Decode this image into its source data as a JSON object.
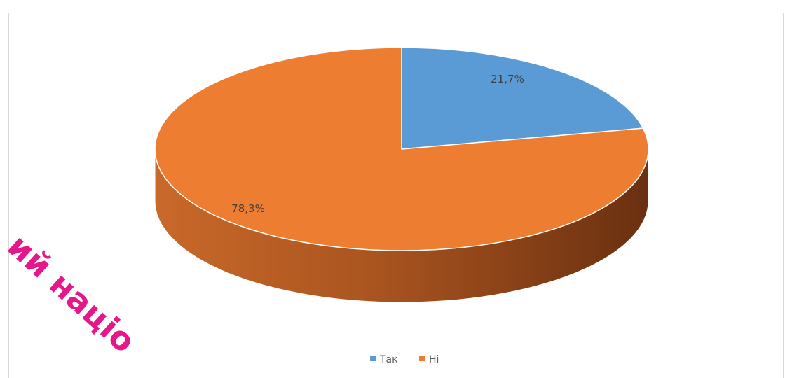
{
  "chart_data": {
    "type": "pie",
    "style": "3d",
    "categories": [
      "Так",
      "Ні"
    ],
    "values": [
      21.7,
      78.3
    ],
    "data_labels": [
      "21,7%",
      "78,3%"
    ],
    "colors": [
      "#5b9bd5",
      "#ed7d31"
    ],
    "legend": {
      "placement": "bottom",
      "entries": [
        "Так",
        "Ні"
      ]
    }
  },
  "watermark": {
    "text": "ий націо",
    "color": "#e6178a"
  }
}
